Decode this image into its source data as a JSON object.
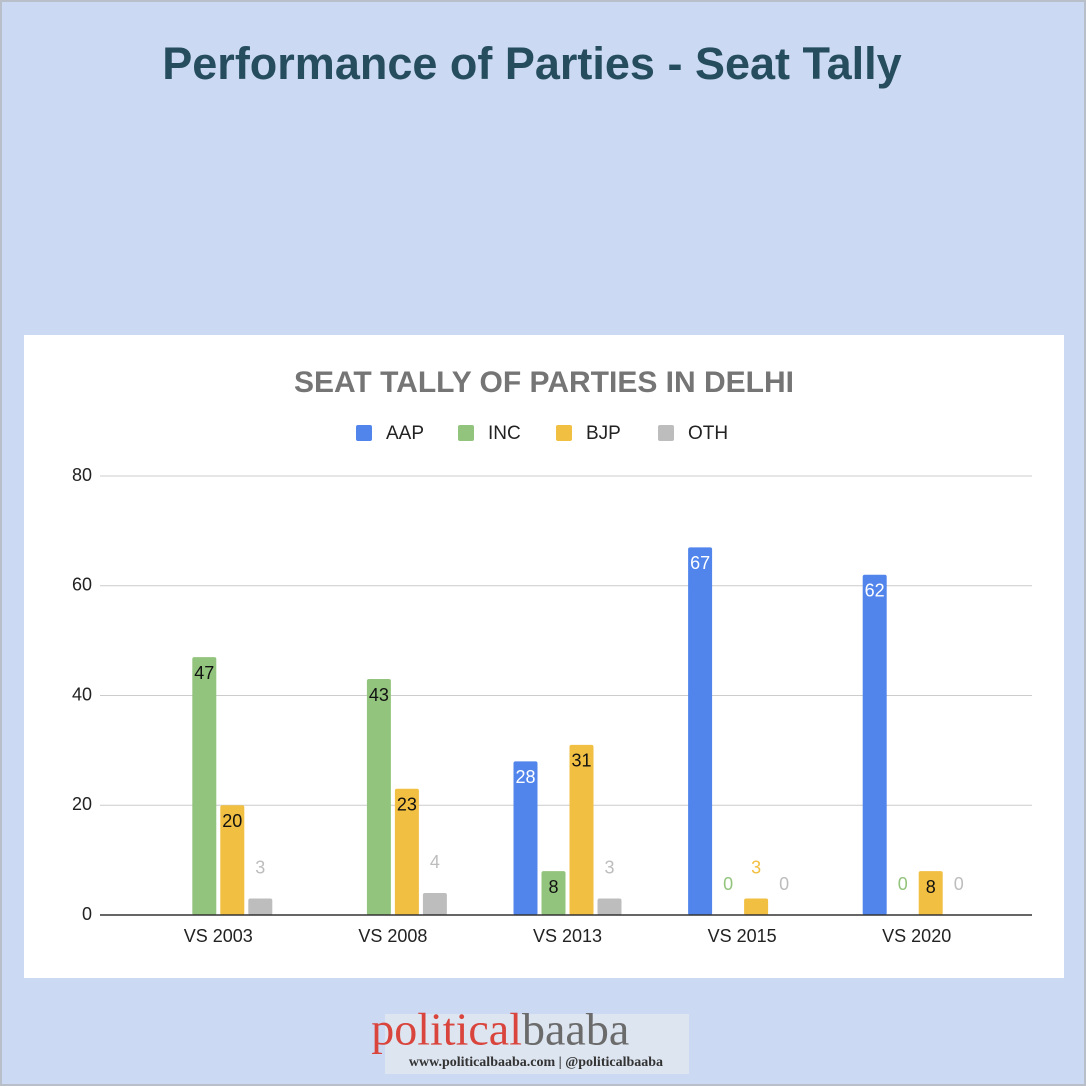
{
  "header": {
    "title": "Performance of Parties - Seat Tally"
  },
  "chart_data": {
    "type": "bar",
    "title": "SEAT TALLY OF PARTIES IN DELHI",
    "categories": [
      "VS 2003",
      "VS 2008",
      "VS 2013",
      "VS 2015",
      "VS 2020"
    ],
    "series": [
      {
        "name": "AAP",
        "color": "#5185ec",
        "values": [
          null,
          null,
          28,
          67,
          62
        ]
      },
      {
        "name": "INC",
        "color": "#93c47d",
        "values": [
          47,
          43,
          8,
          0,
          0
        ]
      },
      {
        "name": "BJP",
        "color": "#f1bf42",
        "values": [
          20,
          23,
          31,
          3,
          8
        ]
      },
      {
        "name": "OTH",
        "color": "#bdbdbd",
        "values": [
          3,
          4,
          3,
          0,
          0
        ]
      }
    ],
    "ylim": [
      0,
      80
    ],
    "yticks": [
      0,
      20,
      40,
      60,
      80
    ],
    "grid": true,
    "legend": "top"
  },
  "footer": {
    "logo_left": "political",
    "logo_right": "baaba",
    "tagline": "www.politicalbaaba.com | @politicalbaaba"
  }
}
